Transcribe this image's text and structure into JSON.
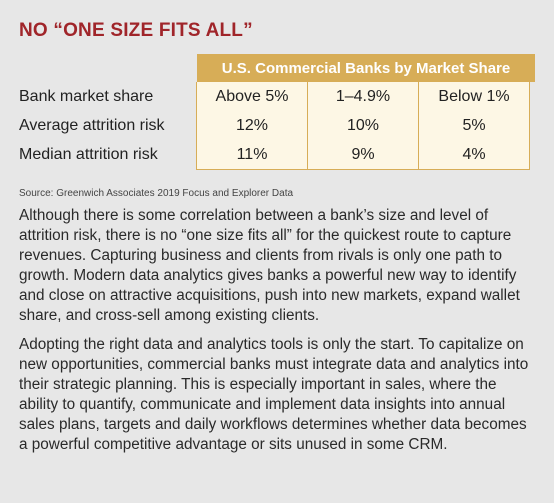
{
  "title": "NO “ONE SIZE FITS ALL”",
  "table": {
    "header": "U.S. Commercial Banks by Market Share",
    "rows": [
      {
        "label": "Bank market share",
        "cells": [
          "Above 5%",
          "1–4.9%",
          "Below 1%"
        ]
      },
      {
        "label": "Average attrition risk",
        "cells": [
          "12%",
          "10%",
          "5%"
        ]
      },
      {
        "label": "Median attrition risk",
        "cells": [
          "11%",
          "9%",
          "4%"
        ]
      }
    ]
  },
  "source": "Source: Greenwich Associates 2019 Focus and Explorer Data",
  "paragraphs": [
    "Although there is some correlation between a bank’s size and level of attrition risk, there is no “one size fits all” for the quickest route to capture revenues. Capturing business and clients from rivals is only one path to growth. Modern data analytics gives banks a powerful new way to identify and close on attractive acquisitions, push into new markets, expand wallet share, and cross-sell among existing clients.",
    "Adopting the right data and analytics tools is only the start. To capitalize on new opportunities, commercial banks must integrate data and analytics into their strategic planning. This is especially important in sales, where the ability to quantify, communicate and implement data insights into annual sales plans, targets and daily workflows determines whether data becomes a powerful competitive advantage or sits unused in some CRM."
  ]
}
